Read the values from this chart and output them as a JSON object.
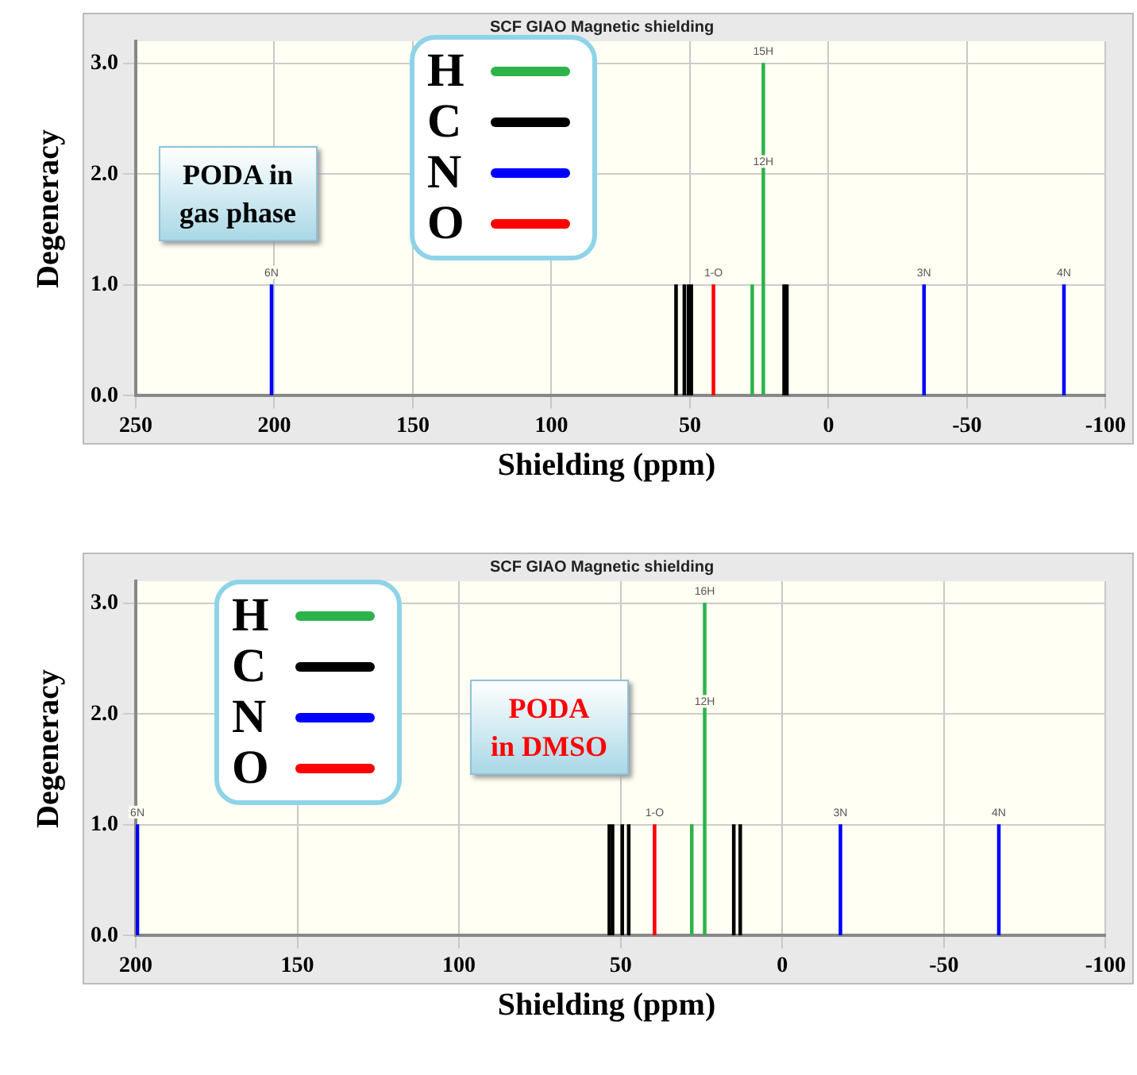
{
  "chart_data": [
    {
      "type": "bar",
      "title": "SCF GIAO Magnetic shielding",
      "xlabel": "Shielding (ppm)",
      "ylabel": "Degeneracy",
      "xlim": [
        250,
        -100
      ],
      "xticks": [
        250,
        200,
        150,
        100,
        50,
        0,
        -50,
        -100
      ],
      "ylim": [
        0,
        3.2
      ],
      "yticks": [
        {
          "value": 0,
          "label": "0.0"
        },
        {
          "value": 1,
          "label": "1.0"
        },
        {
          "value": 2,
          "label": "2.0"
        },
        {
          "value": 3,
          "label": "3.0"
        }
      ],
      "grid": true,
      "legend": "top left",
      "series": [
        {
          "name": "H",
          "color": "#2db34a",
          "x": [
            27.5,
            23.5
          ],
          "values": [
            1,
            3
          ]
        },
        {
          "name": "C",
          "color": "#000000",
          "x": [
            55,
            52,
            50.5,
            49.5,
            16,
            15
          ],
          "values": [
            1,
            1,
            1,
            1,
            1,
            1
          ]
        },
        {
          "name": "N",
          "color": "#0000ff",
          "x": [
            201,
            -34.5,
            -85
          ],
          "values": [
            1,
            1,
            1
          ]
        },
        {
          "name": "O",
          "color": "#ff0000",
          "x": [
            41.5
          ],
          "values": [
            1
          ]
        }
      ],
      "annotations": [
        "PODA in gas phase",
        {
          "text": "15H",
          "x": 23.5,
          "y": 3
        },
        {
          "text": "12H",
          "x": 23.5,
          "y": 2
        },
        {
          "text": "6N",
          "x": 201,
          "y": 1
        },
        {
          "text": "3N",
          "x": -34.5,
          "y": 1
        },
        {
          "text": "4N",
          "x": -85,
          "y": 1
        },
        {
          "text": "1-O",
          "x": 41.5,
          "y": 1
        }
      ]
    },
    {
      "type": "bar",
      "title": "SCF GIAO Magnetic shielding",
      "xlabel": "Shielding (ppm)",
      "ylabel": "Degeneracy",
      "xlim": [
        200,
        -100
      ],
      "xticks": [
        200,
        150,
        100,
        50,
        0,
        -50,
        -100
      ],
      "ylim": [
        0,
        3.2
      ],
      "yticks": [
        {
          "value": 0,
          "label": "0.0"
        },
        {
          "value": 1,
          "label": "1.0"
        },
        {
          "value": 2,
          "label": "2.0"
        },
        {
          "value": 3,
          "label": "3.0"
        }
      ],
      "grid": true,
      "legend": "top left",
      "series": [
        {
          "name": "H",
          "color": "#2db34a",
          "x": [
            28,
            24
          ],
          "values": [
            1,
            3
          ]
        },
        {
          "name": "C",
          "color": "#000000",
          "x": [
            53.5,
            52.5,
            49.5,
            47.5,
            15,
            13
          ],
          "values": [
            1,
            1,
            1,
            1,
            1,
            1
          ]
        },
        {
          "name": "N",
          "color": "#0000ff",
          "x": [
            199.5,
            -18,
            -67
          ],
          "values": [
            1,
            1,
            1
          ]
        },
        {
          "name": "O",
          "color": "#ff0000",
          "x": [
            39.5
          ],
          "values": [
            1
          ]
        }
      ],
      "annotations": [
        "PODA in DMSO",
        {
          "text": "16H",
          "x": 24,
          "y": 3
        },
        {
          "text": "12H",
          "x": 24,
          "y": 2
        },
        {
          "text": "6N",
          "x": 199.5,
          "y": 1
        },
        {
          "text": "3N",
          "x": -18,
          "y": 1
        },
        {
          "text": "4N",
          "x": -67,
          "y": 1
        },
        {
          "text": "1-O",
          "x": 39.5,
          "y": 1
        }
      ]
    }
  ]
}
